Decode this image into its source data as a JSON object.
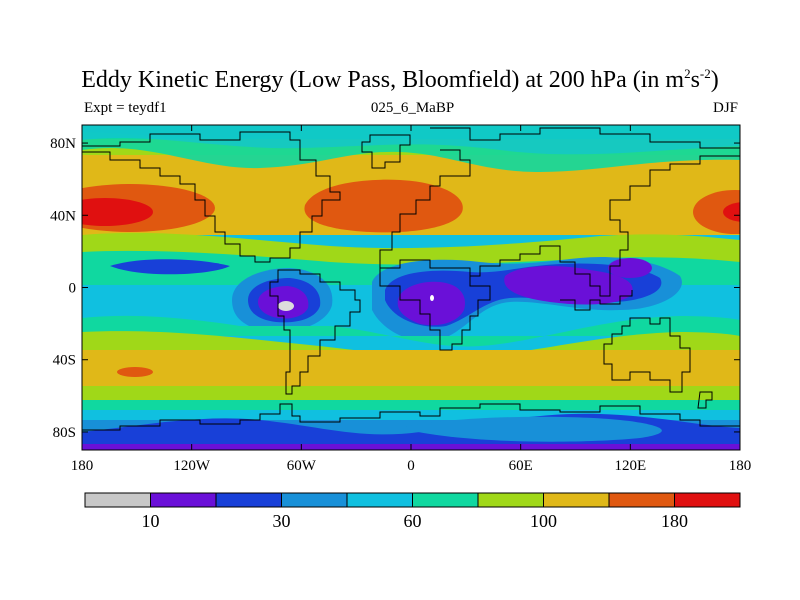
{
  "title": {
    "main": "Eddy Kinetic Energy (Low Pass, Bloomfield) at 200 hPa (in m",
    "sup1": "2",
    "mid": "s",
    "sup2": "-2",
    "close": ")"
  },
  "subtitle": {
    "left": "Expt = teydf1",
    "center": "025_6_MaBP",
    "right": "DJF"
  },
  "map": {
    "lon_range": [
      -180,
      180
    ],
    "lat_range": [
      -90,
      90
    ],
    "y_ticks": [
      {
        "lat": 80,
        "label": "80N"
      },
      {
        "lat": 40,
        "label": "40N"
      },
      {
        "lat": 0,
        "label": "0"
      },
      {
        "lat": -40,
        "label": "40S"
      },
      {
        "lat": -80,
        "label": "80S"
      }
    ],
    "x_ticks": [
      {
        "lon": -180,
        "label": "180"
      },
      {
        "lon": -120,
        "label": "120W"
      },
      {
        "lon": -60,
        "label": "60W"
      },
      {
        "lon": 0,
        "label": "0"
      },
      {
        "lon": 60,
        "label": "60E"
      },
      {
        "lon": 120,
        "label": "120E"
      },
      {
        "lon": 180,
        "label": "180"
      }
    ]
  },
  "colorbar": {
    "colors": [
      "#c8c8c8",
      "#6a10d8",
      "#1840d8",
      "#1890d8",
      "#10c0e0",
      "#10d8a0",
      "#a0d818",
      "#e0b818",
      "#e05810",
      "#e01010"
    ],
    "labels": [
      {
        "after_box": 1,
        "text": "10"
      },
      {
        "after_box": 3,
        "text": "30"
      },
      {
        "after_box": 5,
        "text": "60"
      },
      {
        "after_box": 7,
        "text": "100"
      },
      {
        "after_box": 9,
        "text": "180"
      }
    ]
  }
}
